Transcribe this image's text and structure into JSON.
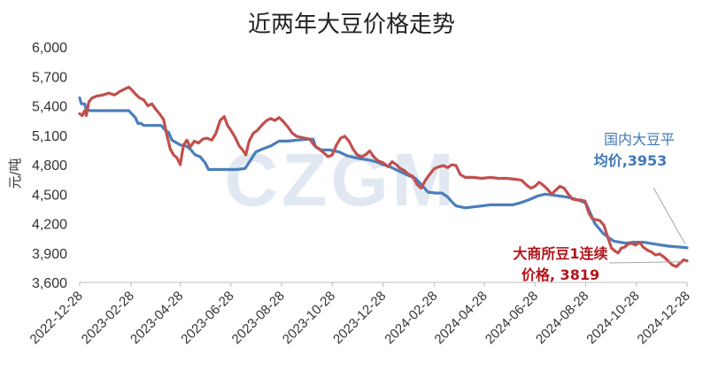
{
  "title": "近两年大豆价格走势",
  "watermark": "CZGM",
  "chart_data": {
    "type": "line",
    "title": "近两年大豆价格走势",
    "ylabel": "元/吨",
    "xlabel": "",
    "ylim": [
      3600,
      6000
    ],
    "yticks": [
      3600,
      3900,
      4200,
      4500,
      4800,
      5100,
      5400,
      5700,
      6000
    ],
    "ytick_labels": [
      "3,600",
      "3,900",
      "4,200",
      "4,500",
      "4,800",
      "5,100",
      "5,400",
      "5,700",
      "6,000"
    ],
    "xlim": [
      "2022-12-28",
      "2024-12-28"
    ],
    "xticks": [
      "2022-12-28",
      "2023-02-28",
      "2023-04-28",
      "2023-06-28",
      "2023-08-28",
      "2023-10-28",
      "2023-12-28",
      "2024-02-28",
      "2024-04-28",
      "2024-06-28",
      "2024-08-28",
      "2024-10-28",
      "2024-12-28"
    ],
    "grid": false,
    "series": [
      {
        "name": "国内大豆平均价",
        "color": "#4a7ebb",
        "points": [
          [
            "2022-12-28",
            5480
          ],
          [
            "2022-12-30",
            5420
          ],
          [
            "2023-01-03",
            5420
          ],
          [
            "2023-01-05",
            5360
          ],
          [
            "2023-01-10",
            5350
          ],
          [
            "2023-02-10",
            5350
          ],
          [
            "2023-02-25",
            5350
          ],
          [
            "2023-03-05",
            5280
          ],
          [
            "2023-03-08",
            5220
          ],
          [
            "2023-03-12",
            5220
          ],
          [
            "2023-03-15",
            5200
          ],
          [
            "2023-04-05",
            5200
          ],
          [
            "2023-04-10",
            5150
          ],
          [
            "2023-04-14",
            5130
          ],
          [
            "2023-04-18",
            5050
          ],
          [
            "2023-04-28",
            5000
          ],
          [
            "2023-05-05",
            4990
          ],
          [
            "2023-05-10",
            4960
          ],
          [
            "2023-05-16",
            4900
          ],
          [
            "2023-05-22",
            4880
          ],
          [
            "2023-05-28",
            4820
          ],
          [
            "2023-06-01",
            4750
          ],
          [
            "2023-07-05",
            4750
          ],
          [
            "2023-07-15",
            4760
          ],
          [
            "2023-07-22",
            4850
          ],
          [
            "2023-07-28",
            4930
          ],
          [
            "2023-08-05",
            4960
          ],
          [
            "2023-08-15",
            4990
          ],
          [
            "2023-08-25",
            5040
          ],
          [
            "2023-09-05",
            5040
          ],
          [
            "2023-09-15",
            5050
          ],
          [
            "2023-10-01",
            5060
          ],
          [
            "2023-10-05",
            5060
          ],
          [
            "2023-10-08",
            4980
          ],
          [
            "2023-10-15",
            4950
          ],
          [
            "2023-10-25",
            4950
          ],
          [
            "2023-11-05",
            4930
          ],
          [
            "2023-11-15",
            4890
          ],
          [
            "2023-11-25",
            4870
          ],
          [
            "2023-12-01",
            4860
          ],
          [
            "2023-12-10",
            4850
          ],
          [
            "2023-12-20",
            4830
          ],
          [
            "2023-12-28",
            4800
          ],
          [
            "2024-01-05",
            4780
          ],
          [
            "2024-01-15",
            4740
          ],
          [
            "2024-01-25",
            4700
          ],
          [
            "2024-02-05",
            4660
          ],
          [
            "2024-02-12",
            4600
          ],
          [
            "2024-02-20",
            4520
          ],
          [
            "2024-03-01",
            4510
          ],
          [
            "2024-03-08",
            4510
          ],
          [
            "2024-03-15",
            4470
          ],
          [
            "2024-03-20",
            4420
          ],
          [
            "2024-03-25",
            4380
          ],
          [
            "2024-04-05",
            4360
          ],
          [
            "2024-04-15",
            4370
          ],
          [
            "2024-04-25",
            4380
          ],
          [
            "2024-05-05",
            4390
          ],
          [
            "2024-05-15",
            4390
          ],
          [
            "2024-06-01",
            4390
          ],
          [
            "2024-06-10",
            4410
          ],
          [
            "2024-06-20",
            4440
          ],
          [
            "2024-07-01",
            4480
          ],
          [
            "2024-07-10",
            4500
          ],
          [
            "2024-07-20",
            4490
          ],
          [
            "2024-07-28",
            4480
          ],
          [
            "2024-08-05",
            4470
          ],
          [
            "2024-08-15",
            4450
          ],
          [
            "2024-08-22",
            4430
          ],
          [
            "2024-08-28",
            4410
          ],
          [
            "2024-09-03",
            4300
          ],
          [
            "2024-09-08",
            4200
          ],
          [
            "2024-09-13",
            4150
          ],
          [
            "2024-09-18",
            4100
          ],
          [
            "2024-09-24",
            4060
          ],
          [
            "2024-10-01",
            4020
          ],
          [
            "2024-10-08",
            4010
          ],
          [
            "2024-10-15",
            4000
          ],
          [
            "2024-10-25",
            4010
          ],
          [
            "2024-11-05",
            4010
          ],
          [
            "2024-11-20",
            3990
          ],
          [
            "2024-12-05",
            3970
          ],
          [
            "2024-12-20",
            3960
          ],
          [
            "2024-12-28",
            3953
          ]
        ]
      },
      {
        "name": "大商所豆1连续价格",
        "color": "#c0504d",
        "points": [
          [
            "2022-12-28",
            5320
          ],
          [
            "2022-12-31",
            5300
          ],
          [
            "2023-01-03",
            5350
          ],
          [
            "2023-01-05",
            5300
          ],
          [
            "2023-01-08",
            5440
          ],
          [
            "2023-01-12",
            5480
          ],
          [
            "2023-01-18",
            5500
          ],
          [
            "2023-01-25",
            5510
          ],
          [
            "2023-02-01",
            5530
          ],
          [
            "2023-02-08",
            5510
          ],
          [
            "2023-02-15",
            5550
          ],
          [
            "2023-02-20",
            5570
          ],
          [
            "2023-02-25",
            5590
          ],
          [
            "2023-03-01",
            5560
          ],
          [
            "2023-03-05",
            5520
          ],
          [
            "2023-03-10",
            5480
          ],
          [
            "2023-03-15",
            5460
          ],
          [
            "2023-03-20",
            5400
          ],
          [
            "2023-03-25",
            5420
          ],
          [
            "2023-03-30",
            5360
          ],
          [
            "2023-04-03",
            5320
          ],
          [
            "2023-04-08",
            5260
          ],
          [
            "2023-04-12",
            5100
          ],
          [
            "2023-04-16",
            4960
          ],
          [
            "2023-04-20",
            4900
          ],
          [
            "2023-04-24",
            4870
          ],
          [
            "2023-04-28",
            4800
          ],
          [
            "2023-05-02",
            5000
          ],
          [
            "2023-05-06",
            5050
          ],
          [
            "2023-05-10",
            4980
          ],
          [
            "2023-05-15",
            5040
          ],
          [
            "2023-05-20",
            5020
          ],
          [
            "2023-05-25",
            5060
          ],
          [
            "2023-05-30",
            5070
          ],
          [
            "2023-06-05",
            5050
          ],
          [
            "2023-06-10",
            5120
          ],
          [
            "2023-06-15",
            5250
          ],
          [
            "2023-06-20",
            5290
          ],
          [
            "2023-06-24",
            5200
          ],
          [
            "2023-06-28",
            5150
          ],
          [
            "2023-07-03",
            5080
          ],
          [
            "2023-07-08",
            4990
          ],
          [
            "2023-07-12",
            4950
          ],
          [
            "2023-07-16",
            4900
          ],
          [
            "2023-07-20",
            5040
          ],
          [
            "2023-07-25",
            5120
          ],
          [
            "2023-07-30",
            5150
          ],
          [
            "2023-08-05",
            5210
          ],
          [
            "2023-08-10",
            5250
          ],
          [
            "2023-08-15",
            5270
          ],
          [
            "2023-08-20",
            5250
          ],
          [
            "2023-08-25",
            5280
          ],
          [
            "2023-08-30",
            5240
          ],
          [
            "2023-09-05",
            5180
          ],
          [
            "2023-09-10",
            5120
          ],
          [
            "2023-09-15",
            5090
          ],
          [
            "2023-09-20",
            5080
          ],
          [
            "2023-09-25",
            5070
          ],
          [
            "2023-10-01",
            5060
          ],
          [
            "2023-10-06",
            5000
          ],
          [
            "2023-10-12",
            4960
          ],
          [
            "2023-10-18",
            4920
          ],
          [
            "2023-10-23",
            4880
          ],
          [
            "2023-10-28",
            4900
          ],
          [
            "2023-11-02",
            5000
          ],
          [
            "2023-11-07",
            5070
          ],
          [
            "2023-11-12",
            5090
          ],
          [
            "2023-11-17",
            5040
          ],
          [
            "2023-11-22",
            4960
          ],
          [
            "2023-11-27",
            4900
          ],
          [
            "2023-12-02",
            4880
          ],
          [
            "2023-12-07",
            4900
          ],
          [
            "2023-12-12",
            4940
          ],
          [
            "2023-12-17",
            4880
          ],
          [
            "2023-12-22",
            4840
          ],
          [
            "2023-12-28",
            4820
          ],
          [
            "2024-01-03",
            4780
          ],
          [
            "2024-01-08",
            4830
          ],
          [
            "2024-01-13",
            4800
          ],
          [
            "2024-01-18",
            4760
          ],
          [
            "2024-01-23",
            4740
          ],
          [
            "2024-01-28",
            4700
          ],
          [
            "2024-02-02",
            4680
          ],
          [
            "2024-02-07",
            4600
          ],
          [
            "2024-02-12",
            4560
          ],
          [
            "2024-02-17",
            4640
          ],
          [
            "2024-02-22",
            4700
          ],
          [
            "2024-02-28",
            4760
          ],
          [
            "2024-03-05",
            4780
          ],
          [
            "2024-03-10",
            4790
          ],
          [
            "2024-03-15",
            4770
          ],
          [
            "2024-03-20",
            4800
          ],
          [
            "2024-03-25",
            4790
          ],
          [
            "2024-03-30",
            4700
          ],
          [
            "2024-04-05",
            4670
          ],
          [
            "2024-04-15",
            4670
          ],
          [
            "2024-04-25",
            4660
          ],
          [
            "2024-05-05",
            4670
          ],
          [
            "2024-05-15",
            4660
          ],
          [
            "2024-05-25",
            4660
          ],
          [
            "2024-06-05",
            4650
          ],
          [
            "2024-06-12",
            4640
          ],
          [
            "2024-06-18",
            4590
          ],
          [
            "2024-06-23",
            4560
          ],
          [
            "2024-06-28",
            4580
          ],
          [
            "2024-07-03",
            4620
          ],
          [
            "2024-07-08",
            4590
          ],
          [
            "2024-07-13",
            4550
          ],
          [
            "2024-07-18",
            4500
          ],
          [
            "2024-07-23",
            4540
          ],
          [
            "2024-07-28",
            4580
          ],
          [
            "2024-08-02",
            4560
          ],
          [
            "2024-08-07",
            4500
          ],
          [
            "2024-08-12",
            4450
          ],
          [
            "2024-08-17",
            4440
          ],
          [
            "2024-08-22",
            4440
          ],
          [
            "2024-08-27",
            4430
          ],
          [
            "2024-09-01",
            4300
          ],
          [
            "2024-09-05",
            4250
          ],
          [
            "2024-09-09",
            4240
          ],
          [
            "2024-09-14",
            4230
          ],
          [
            "2024-09-19",
            4180
          ],
          [
            "2024-09-24",
            4050
          ],
          [
            "2024-09-28",
            3950
          ],
          [
            "2024-10-02",
            3920
          ],
          [
            "2024-10-06",
            3900
          ],
          [
            "2024-10-10",
            3950
          ],
          [
            "2024-10-14",
            3960
          ],
          [
            "2024-10-18",
            3990
          ],
          [
            "2024-10-22",
            4000
          ],
          [
            "2024-10-27",
            3980
          ],
          [
            "2024-11-01",
            4010
          ],
          [
            "2024-11-05",
            3960
          ],
          [
            "2024-11-10",
            3930
          ],
          [
            "2024-11-15",
            3910
          ],
          [
            "2024-11-20",
            3880
          ],
          [
            "2024-11-25",
            3890
          ],
          [
            "2024-11-30",
            3860
          ],
          [
            "2024-12-05",
            3820
          ],
          [
            "2024-12-10",
            3780
          ],
          [
            "2024-12-15",
            3760
          ],
          [
            "2024-12-20",
            3800
          ],
          [
            "2024-12-24",
            3830
          ],
          [
            "2024-12-28",
            3819
          ]
        ]
      }
    ],
    "annotations": [
      {
        "series": "国内大豆平均价",
        "lines": [
          "国内大豆平",
          "均价,3953"
        ],
        "color": "#4a7ebb"
      },
      {
        "series": "大商所豆1连续价格",
        "lines": [
          "大商所豆1连续",
          "价格, 3819"
        ],
        "color": "#b2151b"
      }
    ]
  }
}
